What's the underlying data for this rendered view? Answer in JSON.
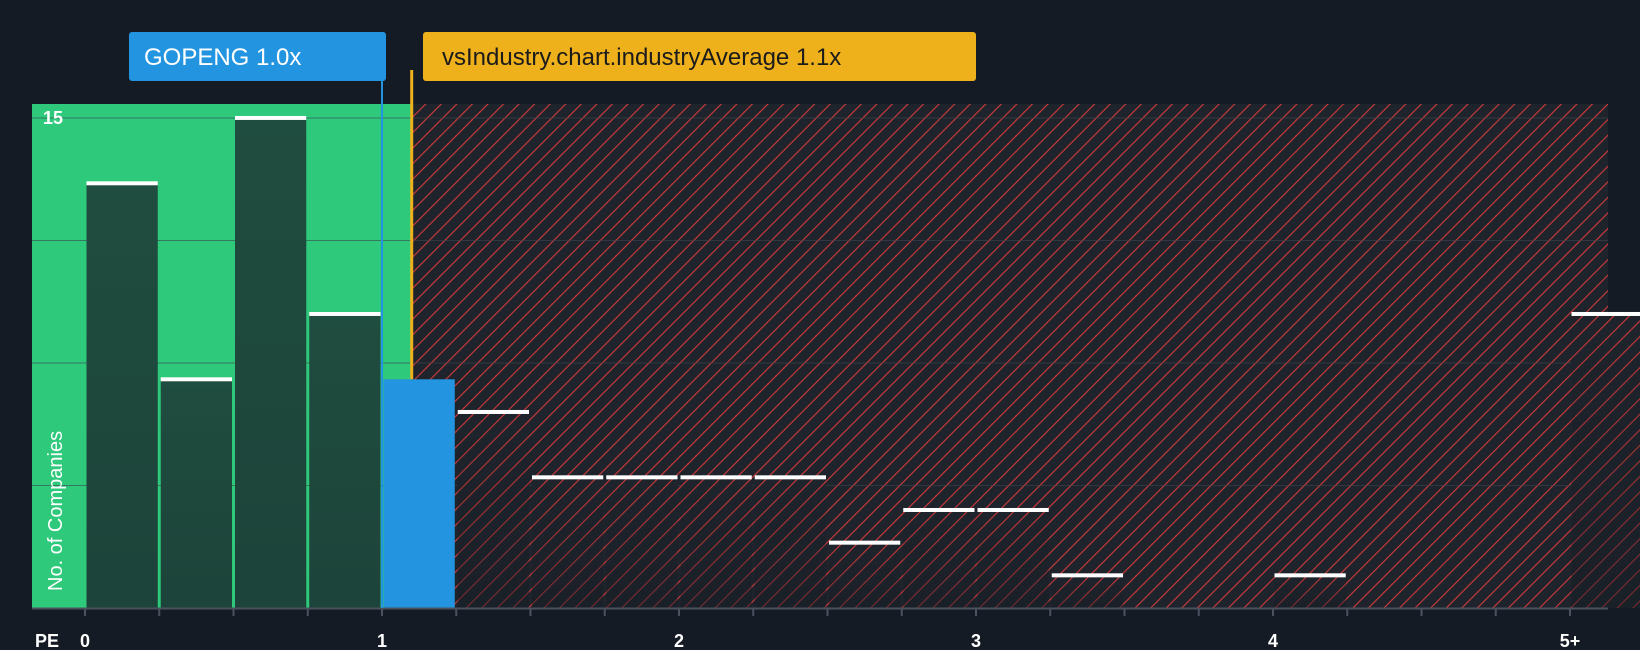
{
  "chart_data": {
    "type": "bar",
    "x_axis_label": "PE",
    "ylabel": "No. of Companies",
    "ylim": [
      0,
      15.5
    ],
    "y_ticks": [
      {
        "value": 15,
        "label": "15"
      }
    ],
    "x_ticks": [
      {
        "value": 0,
        "label": "0"
      },
      {
        "value": 1,
        "label": "1"
      },
      {
        "value": 2,
        "label": "2"
      },
      {
        "value": 3,
        "label": "3"
      },
      {
        "value": 4,
        "label": "4"
      },
      {
        "value": 5,
        "label": "5+"
      }
    ],
    "bin_width": 0.25,
    "bins": [
      {
        "start": 0.0,
        "value": 13
      },
      {
        "start": 0.25,
        "value": 7
      },
      {
        "start": 0.5,
        "value": 15
      },
      {
        "start": 0.75,
        "value": 9
      },
      {
        "start": 1.0,
        "value": 7
      },
      {
        "start": 1.25,
        "value": 6
      },
      {
        "start": 1.5,
        "value": 4
      },
      {
        "start": 1.75,
        "value": 4
      },
      {
        "start": 2.0,
        "value": 4
      },
      {
        "start": 2.25,
        "value": 4
      },
      {
        "start": 2.5,
        "value": 2
      },
      {
        "start": 2.75,
        "value": 3
      },
      {
        "start": 3.0,
        "value": 3
      },
      {
        "start": 3.25,
        "value": 1
      },
      {
        "start": 3.5,
        "value": 0
      },
      {
        "start": 3.75,
        "value": 0
      },
      {
        "start": 4.0,
        "value": 1
      },
      {
        "start": 4.25,
        "value": 0
      },
      {
        "start": 4.5,
        "value": 0
      },
      {
        "start": 4.75,
        "value": 0
      },
      {
        "start": 5.0,
        "value": 9
      }
    ],
    "company_value": 1.0,
    "company_label": "GOPENG 1.0x",
    "industry_average": 1.1,
    "industry_label": "vsIndustry.chart.industryAverage 1.1x",
    "good_value_threshold": 1.1,
    "colors": {
      "background": "#151b24",
      "good_region": "#2ec97b",
      "bar_fill": "#1f4d3f",
      "company_bar": "#2394e0",
      "hatch_red": "#d23a3a",
      "hatch_bg": "#1f242c",
      "bar_top": "#ffffff",
      "company_tag": "#2394e0",
      "industry_tag": "#efb11b",
      "axis": "#4a5260",
      "grid": "#3d4450"
    }
  }
}
